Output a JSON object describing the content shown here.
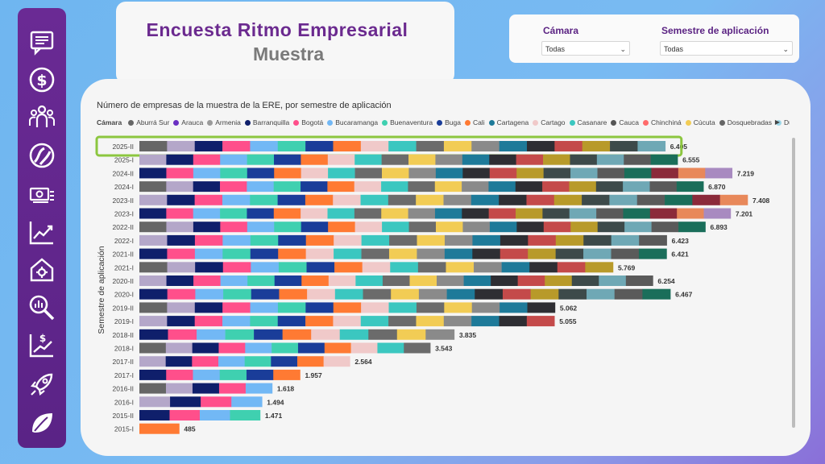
{
  "header": {
    "title": "Encuesta Ritmo Empresarial",
    "subtitle": "Muestra"
  },
  "filters": [
    {
      "label": "Cámara",
      "value": "Todas"
    },
    {
      "label": "Semestre de aplicación",
      "value": "Todas"
    }
  ],
  "sidebar": {
    "icons": [
      "report-icon",
      "dollar-icon",
      "people-icon",
      "globe-icon",
      "money-icon",
      "trend-icon",
      "house-gear-icon",
      "search-chart-icon",
      "money-growth-icon",
      "rocket-icon",
      "leaf-icon"
    ]
  },
  "colors": {
    "accent": "#5b2383",
    "highlight": "#8cc63f",
    "sidebar": "#5a2386"
  },
  "chart_data": {
    "type": "bar",
    "orientation": "horizontal",
    "stacked": true,
    "title": "Número de empresas de la muestra de la ERE, por semestre de aplicación",
    "ylabel": "Semestre de aplicación",
    "legend_title": "Cámara",
    "legend": [
      "Aburrá Sur",
      "Arauca",
      "Armenia",
      "Barranquilla",
      "Bogotá",
      "Bucaramanga",
      "Buenaventura",
      "Buga",
      "Cali",
      "Cartagena",
      "Cartago",
      "Casanare",
      "Cauca",
      "Chinchiná",
      "Cúcuta",
      "Dosquebradas",
      "Duitama"
    ],
    "highlighted": "2025-II",
    "categories": [
      "2025-II",
      "2025-I",
      "2024-II",
      "2024-I",
      "2023-II",
      "2023-I",
      "2022-II",
      "2022-I",
      "2021-II",
      "2021-I",
      "2020-II",
      "2020-I",
      "2019-II",
      "2019-I",
      "2018-II",
      "2018-I",
      "2017-II",
      "2017-I",
      "2016-II",
      "2016-I",
      "2015-II",
      "2015-I"
    ],
    "totals": [
      6405,
      6555,
      7219,
      6870,
      7408,
      7201,
      6893,
      6423,
      6421,
      5769,
      6254,
      6467,
      5062,
      5055,
      3835,
      3543,
      2564,
      1957,
      1618,
      1494,
      1471,
      485
    ],
    "total_labels": [
      "6.405",
      "6.555",
      "7.219",
      "6.870",
      "7.408",
      "7.201",
      "6.893",
      "6.423",
      "6.421",
      "5.769",
      "6.254",
      "6.467",
      "5.062",
      "5.055",
      "3.835",
      "3.543",
      "2.564",
      "1.957",
      "1.618",
      "1.494",
      "1.471",
      "485"
    ],
    "segment_colors": [
      "#666666",
      "#b4a7c9",
      "#0f1f6b",
      "#ff4f8b",
      "#72b8f5",
      "#3fd0b0",
      "#1a3d99",
      "#ff7a33",
      "#f0c9c9",
      "#3bc7c0",
      "#6b6b6b",
      "#f2cc55",
      "#8a8a8a",
      "#1e7a99",
      "#2e2e33",
      "#c44a4a",
      "#b89a2a",
      "#3d4a4a",
      "#6fa8b5",
      "#5a5a5a",
      "#1a6e5a",
      "#8b2a3a",
      "#e8885a",
      "#a88ac0",
      "#9bd6e8"
    ]
  }
}
